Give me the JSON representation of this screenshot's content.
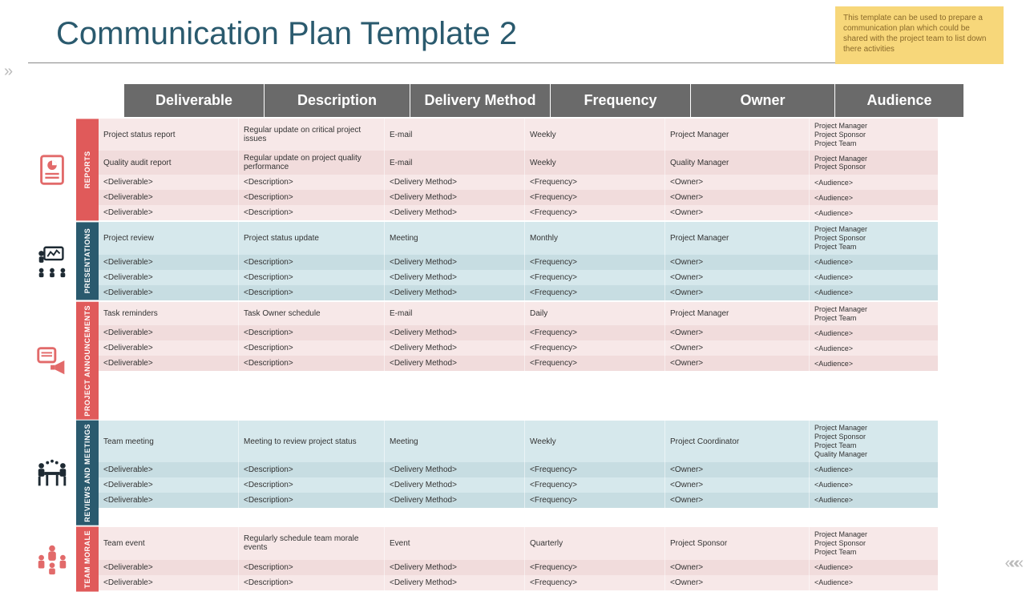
{
  "title": "Communication Plan Template 2",
  "note": "This template can be used to prepare a communication plan which could be shared with the project team to list down there activities",
  "columns": [
    "Deliverable",
    "Description",
    "Delivery Method",
    "Frequency",
    "Owner",
    "Audience"
  ],
  "colors": {
    "title": "#2a5a6e",
    "header_bg": "#6a6a6a",
    "header_fg": "#ffffff",
    "note_bg": "#f7d77a",
    "note_fg": "#8a6a2a",
    "pink_a": "#f7e8e8",
    "pink_b": "#f1dcdc",
    "blue_a": "#d6e8ec",
    "blue_b": "#c7dde2",
    "label_red": "#e05a5a",
    "label_teal": "#2a5a6e",
    "icon_red": "#e26a6a",
    "icon_dark": "#1e2a33"
  },
  "sections": [
    {
      "id": "reports",
      "label": "REPORTS",
      "label_color": "#e05a5a",
      "icon": "report",
      "row_bg": [
        "pink_a",
        "pink_b"
      ],
      "rows": [
        {
          "deliverable": "Project status report",
          "description": "Regular update on critical project issues",
          "method": "E-mail",
          "frequency": "Weekly",
          "owner": "Project Manager",
          "audience": "Project Manager\nProject Sponsor\nProject Team"
        },
        {
          "deliverable": "Quality audit report",
          "description": "Regular update on project quality performance",
          "method": "E-mail",
          "frequency": "Weekly",
          "owner": "Quality Manager",
          "audience": "Project Manager\nProject Sponsor"
        },
        {
          "deliverable": "<Deliverable>",
          "description": "<Description>",
          "method": "<Delivery Method>",
          "frequency": "<Frequency>",
          "owner": "<Owner>",
          "audience": "<Audience>"
        },
        {
          "deliverable": "<Deliverable>",
          "description": "<Description>",
          "method": "<Delivery Method>",
          "frequency": "<Frequency>",
          "owner": "<Owner>",
          "audience": "<Audience>"
        },
        {
          "deliverable": "<Deliverable>",
          "description": "<Description>",
          "method": "<Delivery Method>",
          "frequency": "<Frequency>",
          "owner": "<Owner>",
          "audience": "<Audience>"
        }
      ]
    },
    {
      "id": "presentations",
      "label": "PRESENTATIONS",
      "label_color": "#2a5a6e",
      "icon": "presentation",
      "row_bg": [
        "blue_a",
        "blue_b"
      ],
      "rows": [
        {
          "deliverable": "Project review",
          "description": "Project status update",
          "method": "Meeting",
          "frequency": "Monthly",
          "owner": "Project Manager",
          "audience": "Project Manager\nProject Sponsor\nProject Team"
        },
        {
          "deliverable": "<Deliverable>",
          "description": "<Description>",
          "method": "<Delivery Method>",
          "frequency": "<Frequency>",
          "owner": "<Owner>",
          "audience": "<Audience>"
        },
        {
          "deliverable": "<Deliverable>",
          "description": "<Description>",
          "method": "<Delivery Method>",
          "frequency": "<Frequency>",
          "owner": "<Owner>",
          "audience": "<Audience>"
        },
        {
          "deliverable": "<Deliverable>",
          "description": "<Description>",
          "method": "<Delivery Method>",
          "frequency": "<Frequency>",
          "owner": "<Owner>",
          "audience": "<Audience>"
        }
      ]
    },
    {
      "id": "announcements",
      "label": "PROJECT ANNOUNCEMENTS",
      "label_color": "#e05a5a",
      "icon": "announcement",
      "row_bg": [
        "pink_a",
        "pink_b"
      ],
      "rows": [
        {
          "deliverable": "Task reminders",
          "description": "Task Owner schedule",
          "method": "E-mail",
          "frequency": "Daily",
          "owner": "Project Manager",
          "audience": "Project Manager\nProject Team"
        },
        {
          "deliverable": "<Deliverable>",
          "description": "<Description>",
          "method": "<Delivery Method>",
          "frequency": "<Frequency>",
          "owner": "<Owner>",
          "audience": "<Audience>"
        },
        {
          "deliverable": "<Deliverable>",
          "description": "<Description>",
          "method": "<Delivery Method>",
          "frequency": "<Frequency>",
          "owner": "<Owner>",
          "audience": "<Audience>"
        },
        {
          "deliverable": "<Deliverable>",
          "description": "<Description>",
          "method": "<Delivery Method>",
          "frequency": "<Frequency>",
          "owner": "<Owner>",
          "audience": "<Audience>"
        }
      ]
    },
    {
      "id": "reviews",
      "label": "REVIEWS AND MEETINGS",
      "label_color": "#2a5a6e",
      "icon": "meeting",
      "row_bg": [
        "blue_a",
        "blue_b"
      ],
      "rows": [
        {
          "deliverable": "Team meeting",
          "description": "Meeting to review project status",
          "method": "Meeting",
          "frequency": "Weekly",
          "owner": "Project Coordinator",
          "audience": "Project Manager\nProject Sponsor\nProject Team\nQuality Manager"
        },
        {
          "deliverable": "<Deliverable>",
          "description": "<Description>",
          "method": "<Delivery Method>",
          "frequency": "<Frequency>",
          "owner": "<Owner>",
          "audience": "<Audience>"
        },
        {
          "deliverable": "<Deliverable>",
          "description": "<Description>",
          "method": "<Delivery Method>",
          "frequency": "<Frequency>",
          "owner": "<Owner>",
          "audience": "<Audience>"
        },
        {
          "deliverable": "<Deliverable>",
          "description": "<Description>",
          "method": "<Delivery Method>",
          "frequency": "<Frequency>",
          "owner": "<Owner>",
          "audience": "<Audience>"
        }
      ]
    },
    {
      "id": "morale",
      "label": "TEAM MORALE",
      "label_color": "#e05a5a",
      "icon": "morale",
      "row_bg": [
        "pink_a",
        "pink_b"
      ],
      "rows": [
        {
          "deliverable": "Team event",
          "description": "Regularly schedule team morale events",
          "method": "Event",
          "frequency": "Quarterly",
          "owner": "Project Sponsor",
          "audience": "Project Manager\nProject Sponsor\nProject Team"
        },
        {
          "deliverable": "<Deliverable>",
          "description": "<Description>",
          "method": "<Delivery Method>",
          "frequency": "<Frequency>",
          "owner": "<Owner>",
          "audience": "<Audience>"
        },
        {
          "deliverable": "<Deliverable>",
          "description": "<Description>",
          "method": "<Delivery Method>",
          "frequency": "<Frequency>",
          "owner": "<Owner>",
          "audience": "<Audience>"
        }
      ]
    }
  ]
}
